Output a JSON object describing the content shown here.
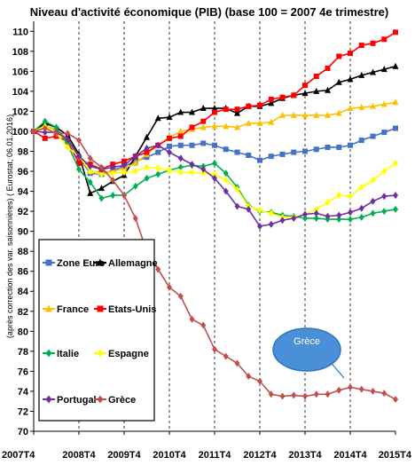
{
  "chart_data": {
    "type": "line",
    "title": "Niveau d'activité économique (PIB)  (base 100 = 2007 4e trimestre)",
    "ylabel_lines": [
      "(après correction des var. saisonnières)  ( Eurostat, 06.01.2016)"
    ],
    "ylim": [
      70,
      111
    ],
    "yticks": [
      70,
      72,
      74,
      76,
      78,
      80,
      82,
      84,
      86,
      88,
      90,
      92,
      94,
      96,
      98,
      100,
      102,
      104,
      106,
      108,
      110
    ],
    "xlim": [
      0,
      32
    ],
    "xticks": [
      {
        "pos": 0,
        "label": "2007T4"
      },
      {
        "pos": 4,
        "label": "2008T4"
      },
      {
        "pos": 8,
        "label": "2009T4"
      },
      {
        "pos": 12,
        "label": "2010T4"
      },
      {
        "pos": 16,
        "label": "2011T4"
      },
      {
        "pos": 20,
        "label": "2012T4"
      },
      {
        "pos": 24,
        "label": "2013T4"
      },
      {
        "pos": 28,
        "label": "2014T4"
      },
      {
        "pos": 32,
        "label": "2015T4"
      }
    ],
    "grid": {
      "vertical_dashed": true,
      "horizontal": false
    },
    "legend_position": "bottom-left",
    "series": [
      {
        "name": "Zone Euro",
        "color": "#4472c4",
        "marker": "square",
        "values": [
          100,
          100.5,
          100.2,
          99.2,
          97.4,
          95.8,
          95.7,
          96.1,
          96.5,
          97.0,
          97.4,
          97.9,
          98.5,
          98.6,
          98.6,
          98.8,
          98.6,
          98.2,
          97.9,
          97.6,
          97.1,
          97.5,
          97.7,
          97.9,
          98.0,
          98.2,
          98.4,
          98.4,
          98.6,
          99.1,
          99.5,
          99.9,
          100.3
        ]
      },
      {
        "name": "Allemagne",
        "color": "#000000",
        "marker": "triangle",
        "values": [
          100,
          100.8,
          100.4,
          99.6,
          97.7,
          93.8,
          94.3,
          95.0,
          95.6,
          97.5,
          99.4,
          101.3,
          101.4,
          101.9,
          101.9,
          102.3,
          102.3,
          102.3,
          101.8,
          102.5,
          102.5,
          102.8,
          103.3,
          103.6,
          103.8,
          104.0,
          104.1,
          104.9,
          105.2,
          105.6,
          105.9,
          106.2,
          106.5
        ]
      },
      {
        "name": "France",
        "color": "#ffc000",
        "marker": "triangle",
        "values": [
          100,
          100.5,
          100.2,
          99.2,
          97.5,
          96.0,
          95.9,
          96.0,
          96.3,
          96.8,
          97.7,
          98.6,
          99.4,
          100.0,
          100.2,
          100.4,
          100.5,
          100.5,
          100.4,
          100.8,
          100.8,
          100.9,
          101.6,
          101.6,
          101.6,
          101.6,
          101.6,
          101.8,
          102.3,
          102.4,
          102.5,
          102.7,
          102.9
        ]
      },
      {
        "name": "Etats-Unis",
        "color": "#ff0000",
        "marker": "square",
        "values": [
          100,
          99.3,
          99.5,
          99.0,
          96.8,
          96.7,
          96.2,
          96.7,
          97.0,
          97.5,
          97.9,
          98.6,
          99.3,
          99.5,
          100.4,
          101.0,
          101.9,
          102.2,
          102.2,
          102.5,
          102.6,
          103.2,
          103.4,
          103.6,
          104.6,
          105.5,
          106.3,
          107.5,
          107.8,
          108.6,
          108.8,
          109.2,
          109.9
        ]
      },
      {
        "name": "Italie",
        "color": "#00b050",
        "marker": "diamond",
        "values": [
          100,
          101.0,
          100.4,
          98.7,
          96.2,
          94.9,
          93.3,
          93.6,
          93.6,
          94.5,
          95.3,
          95.7,
          96.1,
          96.4,
          96.6,
          96.5,
          96.8,
          95.8,
          94.4,
          92.6,
          92.0,
          91.9,
          91.6,
          91.5,
          91.3,
          91.3,
          91.2,
          91.2,
          91.2,
          91.4,
          91.8,
          92.0,
          92.2
        ]
      },
      {
        "name": "Espagne",
        "color": "#ffff00",
        "marker": "diamond",
        "values": [
          100,
          100.5,
          99.8,
          98.4,
          97.5,
          96.0,
          95.7,
          95.8,
          95.9,
          96.0,
          96.4,
          96.3,
          96.1,
          95.9,
          95.9,
          95.8,
          95.7,
          95.1,
          94.2,
          92.5,
          92.1,
          91.8,
          91.4,
          91.4,
          91.7,
          92.2,
          92.9,
          93.6,
          93.5,
          94.4,
          95.1,
          96.0,
          96.8
        ]
      },
      {
        "name": "Portugal",
        "color": "#7030a0",
        "marker": "diamond",
        "values": [
          100,
          99.9,
          99.9,
          99.2,
          97.5,
          96.5,
          96.2,
          96.4,
          96.6,
          97.5,
          98.3,
          98.6,
          97.9,
          97.3,
          96.7,
          96.2,
          95.3,
          94.0,
          92.5,
          92.2,
          90.5,
          90.7,
          91.1,
          91.3,
          91.7,
          91.8,
          91.5,
          91.6,
          91.9,
          92.3,
          93.0,
          93.5,
          93.6
        ]
      },
      {
        "name": "Grèce",
        "color": "#c0504d",
        "marker": "diamond",
        "values": [
          100,
          100.3,
          99.8,
          99.8,
          99.1,
          97.3,
          96.4,
          95.1,
          93.6,
          91.3,
          88.0,
          86.2,
          84.4,
          83.5,
          81.2,
          80.6,
          78.2,
          77.5,
          76.8,
          75.5,
          75.0,
          73.7,
          73.5,
          73.6,
          73.5,
          73.7,
          73.7,
          74.1,
          74.4,
          74.2,
          74.0,
          73.8,
          73.2
        ]
      }
    ],
    "annotations": [
      {
        "text": "Grèce",
        "points_to": {
          "x": 27,
          "y": 74.8
        }
      }
    ]
  }
}
